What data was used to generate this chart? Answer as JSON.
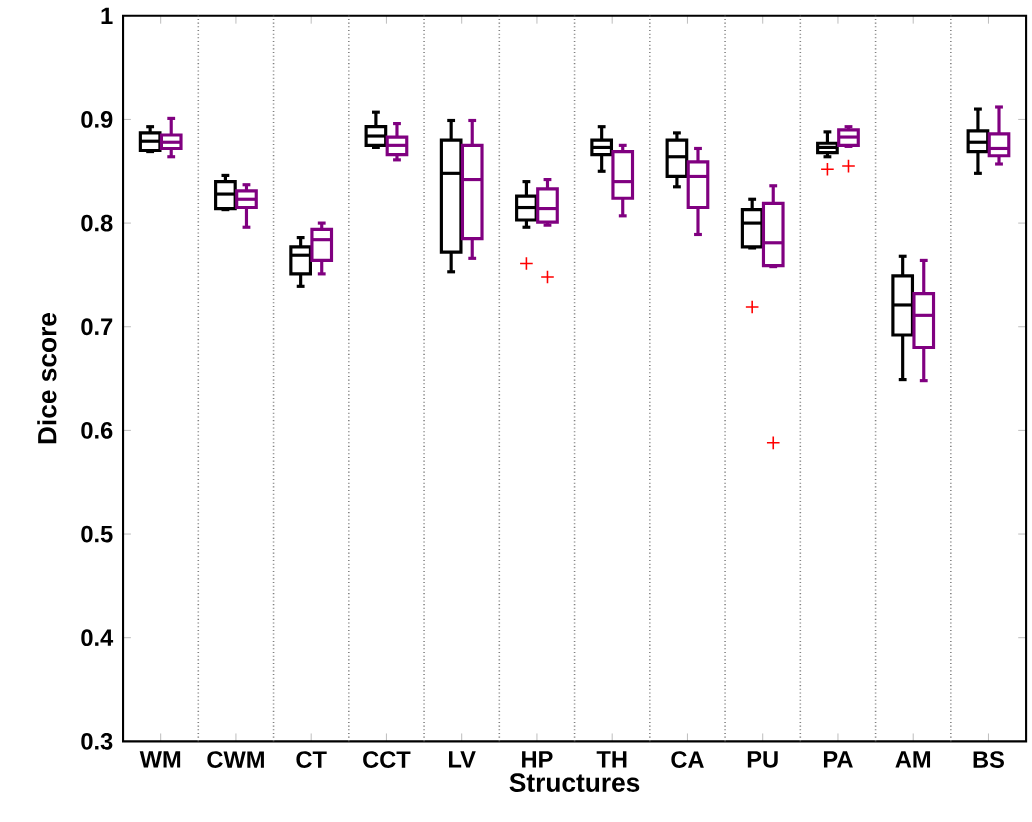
{
  "chart_data": {
    "type": "box",
    "xlabel": "Structures",
    "ylabel": "Dice score",
    "categories": [
      "WM",
      "CWM",
      "CT",
      "CCT",
      "LV",
      "HP",
      "TH",
      "CA",
      "PU",
      "PA",
      "AM",
      "BS"
    ],
    "ylim": [
      0.3,
      1
    ],
    "yticks": [
      0.3,
      0.4,
      0.5,
      0.6,
      0.7,
      0.8,
      0.9,
      1
    ],
    "grid": "x",
    "series": [
      {
        "color": "#000000",
        "boxes": [
          {
            "low": 0.869,
            "q1": 0.87,
            "median": 0.879,
            "q3": 0.887,
            "high": 0.893
          },
          {
            "low": 0.813,
            "q1": 0.814,
            "median": 0.828,
            "q3": 0.84,
            "high": 0.846
          },
          {
            "low": 0.739,
            "q1": 0.751,
            "median": 0.769,
            "q3": 0.777,
            "high": 0.786
          },
          {
            "low": 0.873,
            "q1": 0.875,
            "median": 0.884,
            "q3": 0.893,
            "high": 0.907
          },
          {
            "low": 0.753,
            "q1": 0.772,
            "median": 0.848,
            "q3": 0.88,
            "high": 0.899
          },
          {
            "low": 0.796,
            "q1": 0.803,
            "median": 0.815,
            "q3": 0.826,
            "high": 0.84,
            "outliers": [
              0.761
            ]
          },
          {
            "low": 0.85,
            "q1": 0.866,
            "median": 0.873,
            "q3": 0.88,
            "high": 0.893
          },
          {
            "low": 0.835,
            "q1": 0.845,
            "median": 0.864,
            "q3": 0.88,
            "high": 0.887
          },
          {
            "low": 0.776,
            "q1": 0.777,
            "median": 0.8,
            "q3": 0.813,
            "high": 0.823,
            "outliers": [
              0.719
            ]
          },
          {
            "low": 0.864,
            "q1": 0.868,
            "median": 0.873,
            "q3": 0.877,
            "high": 0.888,
            "outliers": [
              0.852
            ]
          },
          {
            "low": 0.649,
            "q1": 0.692,
            "median": 0.721,
            "q3": 0.749,
            "high": 0.768
          },
          {
            "low": 0.848,
            "q1": 0.869,
            "median": 0.878,
            "q3": 0.889,
            "high": 0.91
          }
        ]
      },
      {
        "color": "#800080",
        "boxes": [
          {
            "low": 0.864,
            "q1": 0.872,
            "median": 0.878,
            "q3": 0.885,
            "high": 0.901
          },
          {
            "low": 0.796,
            "q1": 0.815,
            "median": 0.823,
            "q3": 0.831,
            "high": 0.837
          },
          {
            "low": 0.751,
            "q1": 0.764,
            "median": 0.784,
            "q3": 0.794,
            "high": 0.8
          },
          {
            "low": 0.861,
            "q1": 0.866,
            "median": 0.875,
            "q3": 0.883,
            "high": 0.896
          },
          {
            "low": 0.766,
            "q1": 0.785,
            "median": 0.842,
            "q3": 0.875,
            "high": 0.899
          },
          {
            "low": 0.798,
            "q1": 0.801,
            "median": 0.814,
            "q3": 0.833,
            "high": 0.842,
            "outliers": [
              0.748
            ]
          },
          {
            "low": 0.807,
            "q1": 0.824,
            "median": 0.84,
            "q3": 0.869,
            "high": 0.875
          },
          {
            "low": 0.789,
            "q1": 0.815,
            "median": 0.845,
            "q3": 0.859,
            "high": 0.872
          },
          {
            "low": 0.758,
            "q1": 0.759,
            "median": 0.781,
            "q3": 0.819,
            "high": 0.836,
            "outliers": [
              0.588
            ]
          },
          {
            "low": 0.874,
            "q1": 0.875,
            "median": 0.883,
            "q3": 0.89,
            "high": 0.893,
            "outliers": [
              0.855
            ]
          },
          {
            "low": 0.648,
            "q1": 0.68,
            "median": 0.711,
            "q3": 0.732,
            "high": 0.764
          },
          {
            "low": 0.857,
            "q1": 0.865,
            "median": 0.872,
            "q3": 0.886,
            "high": 0.912
          }
        ]
      }
    ]
  }
}
